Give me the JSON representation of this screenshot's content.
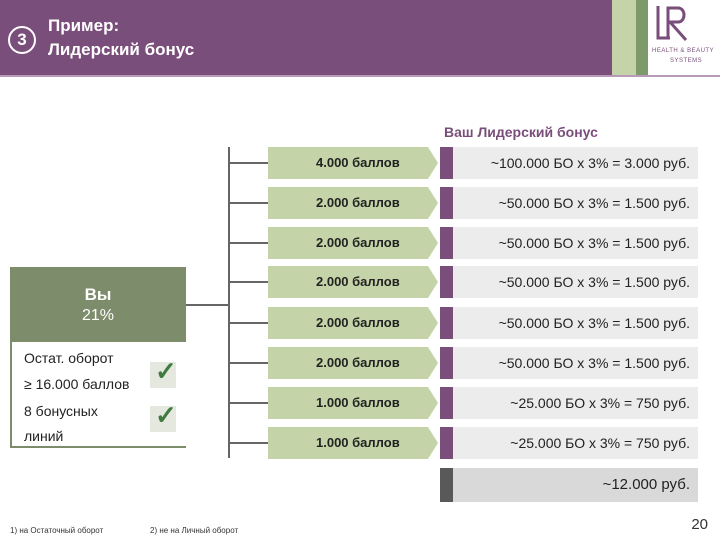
{
  "header": {
    "badge_number": "3",
    "title_line1": "Пример:",
    "title_line2": "Лидерский бонус",
    "logo_text": "LR",
    "logo_tagline1": "HEALTH & BEAUTY",
    "logo_tagline2": "SYSTEMS"
  },
  "section_title": "Ваш Лидерский бонус",
  "you": {
    "label": "Вы",
    "percent": "21%",
    "condition1_line1": "Остат. оборот",
    "condition1_line2": "≥ 16.000 баллов",
    "condition2_line1": "8 бонусных",
    "condition2_line2": "линий"
  },
  "rows": [
    {
      "points": "4.000 баллов",
      "calc": "~100.000 БО х 3% = 3.000 руб."
    },
    {
      "points": "2.000 баллов",
      "calc": "~50.000 БО х 3% = 1.500 руб."
    },
    {
      "points": "2.000 баллов",
      "calc": "~50.000 БО х 3% = 1.500 руб."
    },
    {
      "points": "2.000 баллов",
      "calc": "~50.000 БО х 3% = 1.500 руб."
    },
    {
      "points": "2.000 баллов",
      "calc": "~50.000 БО х 3% = 1.500 руб."
    },
    {
      "points": "2.000 баллов",
      "calc": "~50.000 БО х 3% = 1.500 руб."
    },
    {
      "points": "1.000 баллов",
      "calc": "~25.000 БО х 3% = 750 руб."
    },
    {
      "points": "1.000 баллов",
      "calc": "~25.000 БО х 3% = 750 руб."
    }
  ],
  "total": "~12.000 руб.",
  "footnotes": {
    "note1": "1)  на Остаточный оборот",
    "note2": "2) не на Личный оборот"
  },
  "page_number": "20",
  "colors": {
    "header_purple": "#7a4e7a",
    "light_green": "#c5d4a8",
    "dark_green": "#7d8c6a",
    "check_green": "#3f7a3f"
  }
}
